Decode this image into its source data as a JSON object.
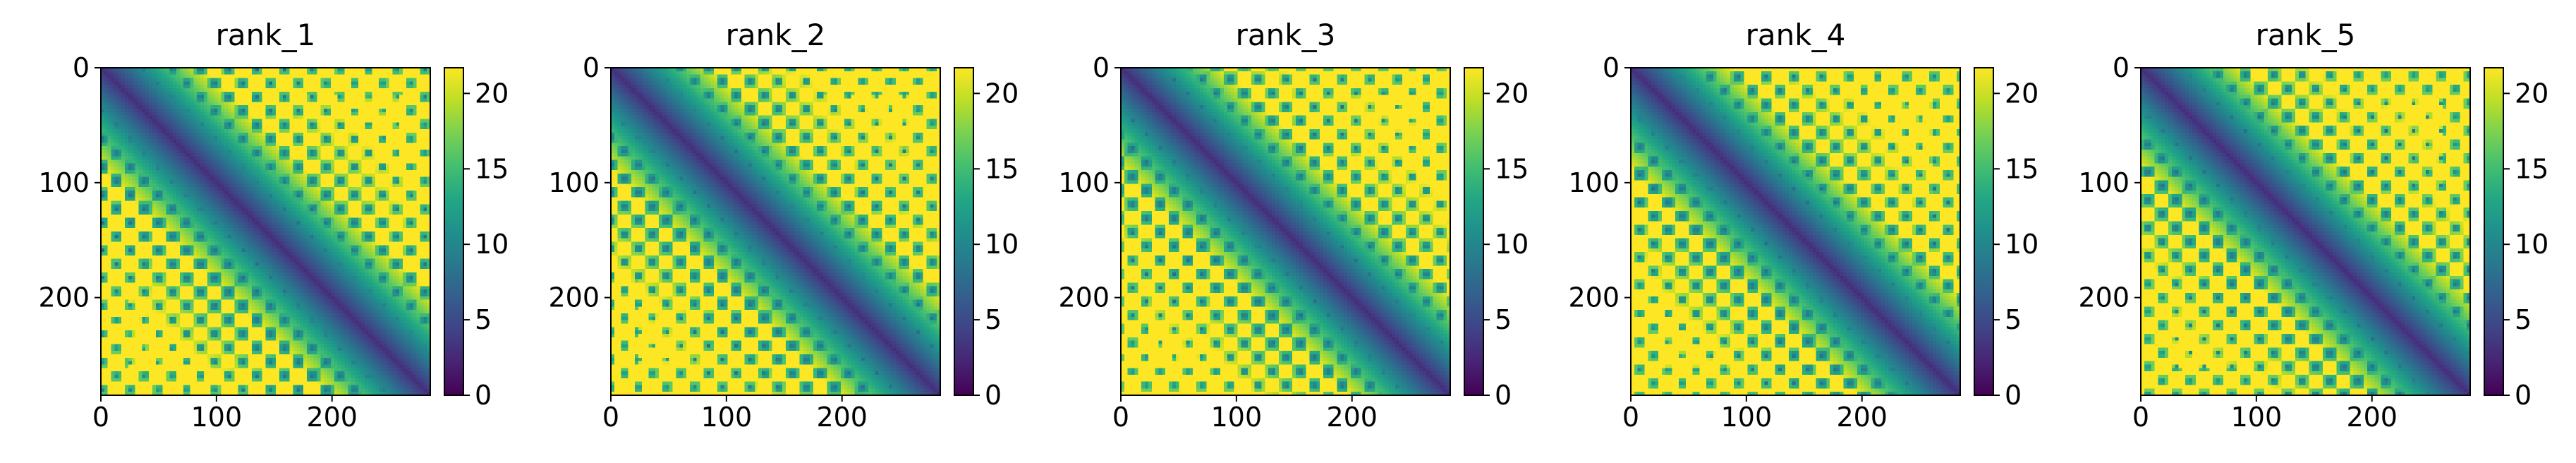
{
  "figure": {
    "layout": "1x5 panel grid",
    "background": "#ffffff"
  },
  "chart_data": [
    {
      "type": "heatmap",
      "title": "rank_1",
      "xlabel": "",
      "ylabel": "",
      "x_range": [
        0,
        285
      ],
      "y_range": [
        0,
        285
      ],
      "y_inverted": true,
      "x_ticks": [
        0,
        100,
        200
      ],
      "y_ticks": [
        0,
        100,
        200
      ],
      "colorbar": {
        "range": [
          0,
          21.7
        ],
        "ticks": [
          0,
          5,
          10,
          15,
          20
        ],
        "colormap": "viridis"
      },
      "description_pattern": "pairwise distance map: low-valued diagonal band with lattice of low-valued diamond contacts, saturated high values elsewhere"
    },
    {
      "type": "heatmap",
      "title": "rank_2",
      "xlabel": "",
      "ylabel": "",
      "x_range": [
        0,
        285
      ],
      "y_range": [
        0,
        285
      ],
      "y_inverted": true,
      "x_ticks": [
        0,
        100,
        200
      ],
      "y_ticks": [
        0,
        100,
        200
      ],
      "colorbar": {
        "range": [
          0,
          21.7
        ],
        "ticks": [
          0,
          5,
          10,
          15,
          20
        ],
        "colormap": "viridis"
      }
    },
    {
      "type": "heatmap",
      "title": "rank_3",
      "xlabel": "",
      "ylabel": "",
      "x_range": [
        0,
        285
      ],
      "y_range": [
        0,
        285
      ],
      "y_inverted": true,
      "x_ticks": [
        0,
        100,
        200
      ],
      "y_ticks": [
        0,
        100,
        200
      ],
      "colorbar": {
        "range": [
          0,
          21.7
        ],
        "ticks": [
          0,
          5,
          10,
          15,
          20
        ],
        "colormap": "viridis"
      }
    },
    {
      "type": "heatmap",
      "title": "rank_4",
      "xlabel": "",
      "ylabel": "",
      "x_range": [
        0,
        285
      ],
      "y_range": [
        0,
        285
      ],
      "y_inverted": true,
      "x_ticks": [
        0,
        100,
        200
      ],
      "y_ticks": [
        0,
        100,
        200
      ],
      "colorbar": {
        "range": [
          0,
          21.7
        ],
        "ticks": [
          0,
          5,
          10,
          15,
          20
        ],
        "colormap": "viridis"
      }
    },
    {
      "type": "heatmap",
      "title": "rank_5",
      "xlabel": "",
      "ylabel": "",
      "x_range": [
        0,
        285
      ],
      "y_range": [
        0,
        285
      ],
      "y_inverted": true,
      "x_ticks": [
        0,
        100,
        200
      ],
      "y_ticks": [
        0,
        100,
        200
      ],
      "colorbar": {
        "range": [
          0,
          21.7
        ],
        "ticks": [
          0,
          5,
          10,
          15,
          20
        ],
        "colormap": "viridis"
      }
    }
  ]
}
